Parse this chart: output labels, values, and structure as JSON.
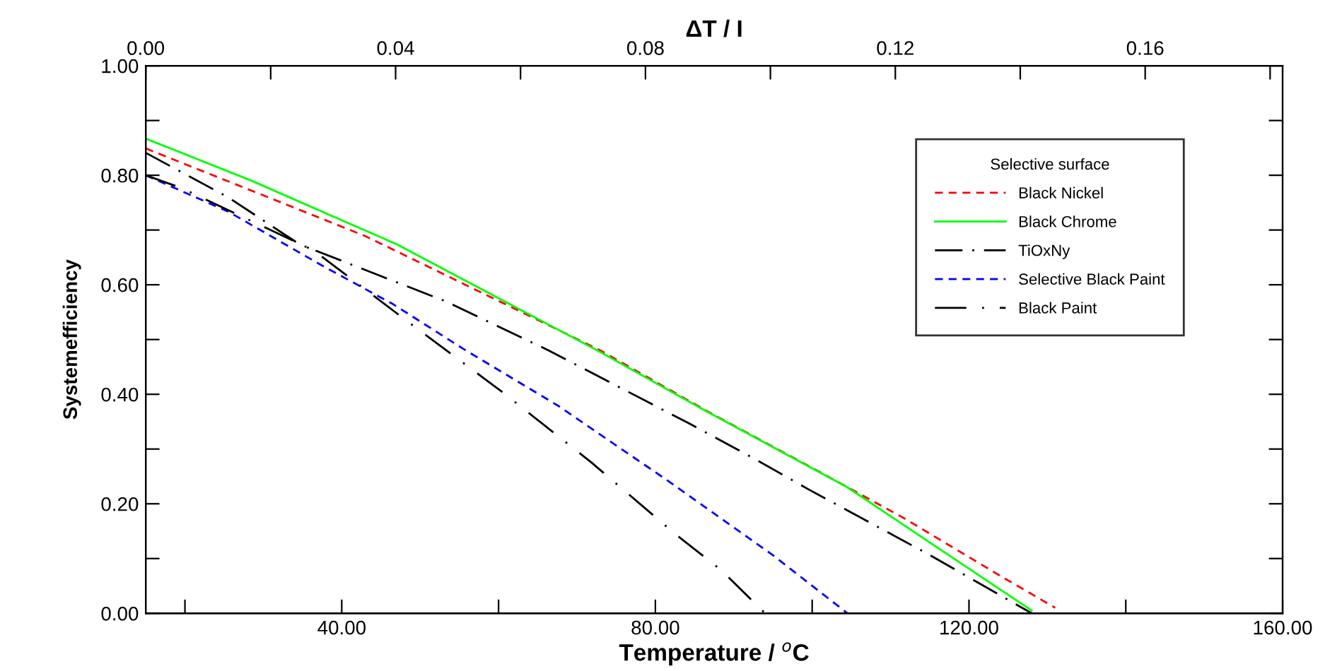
{
  "chart_data": {
    "type": "line",
    "xlabel": "Temperature / $^{o}$C",
    "ylabel": "Systemefficiency",
    "x2label": "ΔT / I",
    "legend_title": "Selective surface",
    "xlim": [
      15,
      160
    ],
    "xticks": [
      {
        "value": 20,
        "label": null
      },
      {
        "value": 40,
        "label": "40.00"
      },
      {
        "value": 60,
        "label": null
      },
      {
        "value": 80,
        "label": "80.00"
      },
      {
        "value": 100,
        "label": null
      },
      {
        "value": 120,
        "label": "120.00"
      },
      {
        "value": 140,
        "label": null
      },
      {
        "value": 160,
        "label": "160.00"
      }
    ],
    "ylim": [
      0,
      1
    ],
    "yticks": [
      {
        "value": 0,
        "label": "0.00"
      },
      {
        "value": 0.1,
        "label": null
      },
      {
        "value": 0.2,
        "label": "0.20"
      },
      {
        "value": 0.3,
        "label": null
      },
      {
        "value": 0.4,
        "label": "0.40"
      },
      {
        "value": 0.5,
        "label": null
      },
      {
        "value": 0.6,
        "label": "0.60"
      },
      {
        "value": 0.7,
        "label": null
      },
      {
        "value": 0.8,
        "label": "0.80"
      },
      {
        "value": 0.9,
        "label": null
      },
      {
        "value": 1.0,
        "label": "1.00"
      }
    ],
    "x2lim": [
      0,
      0.182
    ],
    "x2ticks": [
      {
        "value": 0,
        "label": "0.00"
      },
      {
        "value": 0.02,
        "label": null
      },
      {
        "value": 0.04,
        "label": "0.04"
      },
      {
        "value": 0.06,
        "label": null
      },
      {
        "value": 0.08,
        "label": "0.08"
      },
      {
        "value": 0.1,
        "label": null
      },
      {
        "value": 0.12,
        "label": "0.12"
      },
      {
        "value": 0.14,
        "label": null
      },
      {
        "value": 0.16,
        "label": "0.16"
      },
      {
        "value": 0.18,
        "label": null
      }
    ],
    "grid": false,
    "legend": "top right",
    "marker": "none",
    "series": [
      {
        "name": "Black Nickel",
        "color": "#ff0000",
        "line_style": "dashed",
        "x": [
          15,
          43,
          73,
          87,
          99.7,
          111.8,
          123.8,
          131
        ],
        "values": [
          0.849,
          0.689,
          0.48,
          0.366,
          0.268,
          0.173,
          0.07,
          0.01
        ]
      },
      {
        "name": "Black Chrome",
        "color": "#00ff00",
        "line_style": "solid",
        "x": [
          15,
          28.5,
          47,
          73,
          86.5,
          104.5,
          116.6,
          128
        ],
        "values": [
          0.867,
          0.79,
          0.674,
          0.477,
          0.369,
          0.23,
          0.114,
          0.005
        ]
      },
      {
        "name": "TiOxNy",
        "color": "#000000",
        "line_style": "dashdot",
        "x": [
          15,
          25.6,
          34.6,
          53.2,
          66.4,
          84.4,
          92.8,
          99.7,
          114.8,
          128
        ],
        "values": [
          0.841,
          0.759,
          0.674,
          0.57,
          0.48,
          0.346,
          0.281,
          0.225,
          0.108,
          0
        ]
      },
      {
        "name": "Selective Black Paint",
        "color": "#0000ff",
        "line_style": "dashed",
        "x": [
          15,
          25.6,
          37.5,
          46.5,
          55.5,
          67.6,
          81.5,
          95,
          104.5
        ],
        "values": [
          0.8,
          0.733,
          0.635,
          0.565,
          0.483,
          0.379,
          0.243,
          0.106,
          0
        ]
      },
      {
        "name": "Black Paint",
        "color": "#000000",
        "line_style": "longdash",
        "x": [
          15,
          19.5,
          36.4,
          48.3,
          60.4,
          71.8,
          82.6,
          88.3,
          94
        ],
        "values": [
          0.8,
          0.777,
          0.663,
          0.534,
          0.405,
          0.276,
          0.144,
          0.08,
          0
        ]
      }
    ]
  }
}
